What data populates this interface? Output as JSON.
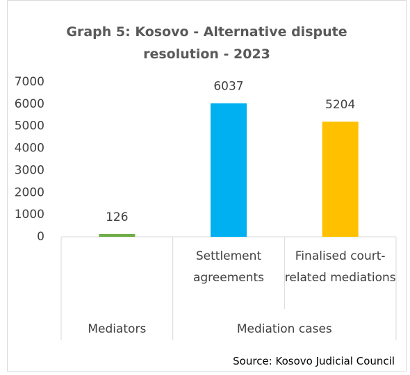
{
  "chart_data": {
    "type": "bar",
    "title": "Graph 5: Kosovo - Alternative dispute resolution - 2023",
    "source": "Source: Kosovo Judicial Council",
    "groups": [
      {
        "name": "Mediators",
        "categories": [
          null
        ]
      },
      {
        "name": "Mediation cases",
        "categories": [
          "Settlement agreements",
          "Finalised court-related mediations"
        ]
      }
    ],
    "values": [
      126,
      6037,
      5204
    ],
    "colors": [
      "#70ad47",
      "#00b0f0",
      "#ffc000"
    ],
    "ylim": [
      0,
      7000
    ],
    "yticks": [
      0,
      1000,
      2000,
      3000,
      4000,
      5000,
      6000,
      7000
    ],
    "grid": false
  }
}
